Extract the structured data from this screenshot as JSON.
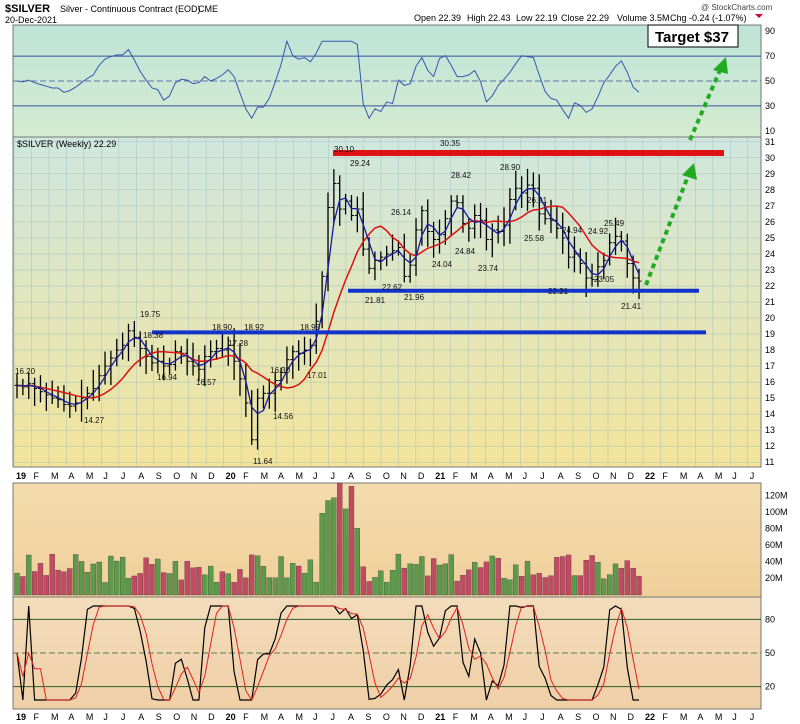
{
  "header": {
    "symbol": "$SILVER",
    "description": "Silver - Continuous Contract (EOD)",
    "exchange": "CME",
    "date": "20-Dec-2021",
    "open": "Open 22.39",
    "high": "High 22.43",
    "low": "Low 22.19",
    "close": "Close 22.29",
    "volume": "Volume 3.5M",
    "change": "Chg -0.24 (-1.07%)",
    "watermark": "@ StockCharts.com"
  },
  "target_label": "Target $37",
  "price_panel_label": "$SILVER (Weekly) 22.29",
  "colors": {
    "rsi_bg": "#c8e6d6",
    "price_bg_top": "#cfe6dc",
    "price_bg_bottom": "#f4e6a0",
    "volume_bg": "#f3d6a8",
    "stoch_bg": "#f2d6b4",
    "up_volume": "#5d9a4a",
    "down_volume": "#c24a63",
    "resistance_line": "#dd1111",
    "support_line": "#1133cc",
    "target_arrow": "#22aa22",
    "ma_fast": "#1a1aa0",
    "ma_slow": "#dd1111",
    "rsi_line": "#3a55b0"
  },
  "chart_data": {
    "type": "line",
    "x_axis_labels": [
      "19",
      "F",
      "M",
      "A",
      "M",
      "J",
      "J",
      "A",
      "S",
      "O",
      "N",
      "D",
      "20",
      "F",
      "M",
      "A",
      "M",
      "J",
      "J",
      "A",
      "S",
      "O",
      "N",
      "D",
      "21",
      "F",
      "M",
      "A",
      "M",
      "J",
      "J",
      "A",
      "S",
      "O",
      "N",
      "D",
      "22",
      "F",
      "M",
      "A",
      "M",
      "J",
      "J"
    ],
    "price_axis": {
      "range": [
        11,
        31
      ],
      "ticks": [
        11,
        12,
        13,
        14,
        15,
        16,
        17,
        18,
        19,
        20,
        21,
        22,
        23,
        24,
        25,
        26,
        27,
        28,
        29,
        30,
        31
      ]
    },
    "rsi_axis": {
      "ticks": [
        10,
        30,
        50,
        70,
        90
      ]
    },
    "volume_axis": {
      "ticks": [
        "20M",
        "40M",
        "60M",
        "80M",
        "100M",
        "120M"
      ]
    },
    "stoch_axis": {
      "ticks": [
        20,
        50,
        80
      ]
    },
    "price_series_weekly_close": [
      15.8,
      15.7,
      15.9,
      15.6,
      15.4,
      15.2,
      15.0,
      14.9,
      14.6,
      14.5,
      14.7,
      15.0,
      15.3,
      15.6,
      16.4,
      17.0,
      17.5,
      18.0,
      18.3,
      19.2,
      18.8,
      18.1,
      17.6,
      17.2,
      17.3,
      17.0,
      17.1,
      17.9,
      17.8,
      17.3,
      17.0,
      16.8,
      17.6,
      17.9,
      18.1,
      18.0,
      18.3,
      17.3,
      16.2,
      14.7,
      12.4,
      15.0,
      15.3,
      15.3,
      16.1,
      16.6,
      17.4,
      17.9,
      17.8,
      18.0,
      18.3,
      19.8,
      22.6,
      26.9,
      28.4,
      26.8,
      27.3,
      26.4,
      26.8,
      24.3,
      23.1,
      23.6,
      23.8,
      24.0,
      24.2,
      24.4,
      22.6,
      23.3,
      25.5,
      26.7,
      25.4,
      24.9,
      25.2,
      26.2,
      27.3,
      27.2,
      25.9,
      25.6,
      26.4,
      26.1,
      24.9,
      25.5,
      25.4,
      25.8,
      27.4,
      28.1,
      27.8,
      28.3,
      28.1,
      26.5,
      26.2,
      26.1,
      25.6,
      25.0,
      23.8,
      24.0,
      23.4,
      22.5,
      22.4,
      23.2,
      23.6,
      24.7,
      25.1,
      24.8,
      23.4,
      22.5,
      22.3
    ],
    "annotations": {
      "price_labels": [
        "16.20",
        "14.27",
        "19.75",
        "18.38",
        "16.94",
        "16.57",
        "18.90",
        "18.92",
        "17.28",
        "16.30",
        "14.56",
        "11.64",
        "18.95",
        "17.01",
        "30.10",
        "29.24",
        "30.35",
        "28.42",
        "28.90",
        "26.91",
        "26.14",
        "22.62",
        "21.81",
        "21.96",
        "24.04",
        "24.84",
        "23.74",
        "25.58",
        "24.94",
        "24.92",
        "25.49",
        "22.21",
        "23.05",
        "21.41"
      ],
      "resistance_level": 30.3,
      "support_level_upper": 21.7,
      "support_level_lower": 19.1,
      "target": 37
    },
    "series": [
      {
        "name": "$SILVER (Weekly)",
        "values_key": "price_series_weekly_close"
      }
    ]
  }
}
